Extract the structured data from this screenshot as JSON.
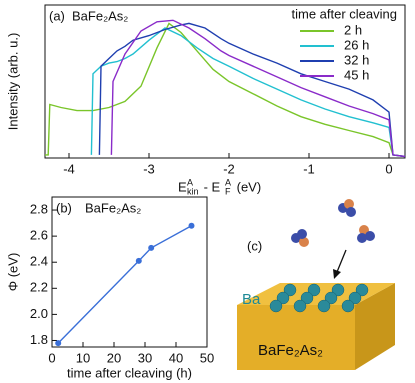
{
  "chart_data": [
    {
      "type": "line",
      "panel_label": "(a)",
      "annotation": "BaFe₂As₂",
      "xlabel": [
        "E",
        "A",
        "kin",
        " - E",
        "A",
        "F",
        " (eV)"
      ],
      "ylabel": "Intensity (arb. u.)",
      "xlim": [
        -4.3,
        0.2
      ],
      "xticks": [
        -4,
        -3,
        -2,
        -1,
        0
      ],
      "ylim": [
        0,
        1
      ],
      "legend_title": "time after cleaving",
      "legend": "upper right",
      "series": [
        {
          "name": "2 h",
          "color": "#7ac52a",
          "x": [
            -4.3,
            -4.26,
            -4.24,
            -4.1,
            -3.9,
            -3.7,
            -3.5,
            -3.3,
            -3.1,
            -2.9,
            -2.75,
            -2.6,
            -2.4,
            -2.2,
            -2,
            -1.7,
            -1.4,
            -1.1,
            -0.8,
            -0.5,
            -0.2,
            0,
            0.05,
            0.2
          ],
          "values": [
            0.02,
            0.02,
            0.35,
            0.33,
            0.31,
            0.31,
            0.33,
            0.37,
            0.47,
            0.72,
            0.88,
            0.82,
            0.7,
            0.58,
            0.5,
            0.42,
            0.34,
            0.27,
            0.22,
            0.18,
            0.14,
            0.1,
            0.02,
            0.01
          ]
        },
        {
          "name": "26 h",
          "color": "#22c0d0",
          "x": [
            -3.72,
            -3.7,
            -3.6,
            -3.5,
            -3.4,
            -3.3,
            -3.2,
            -3.0,
            -2.8,
            -2.6,
            -2.4,
            -2.2,
            -2,
            -1.7,
            -1.4,
            -1.1,
            -0.8,
            -0.5,
            -0.2,
            0,
            0.05,
            0.2
          ],
          "values": [
            0.02,
            0.55,
            0.6,
            0.62,
            0.63,
            0.65,
            0.68,
            0.77,
            0.85,
            0.8,
            0.72,
            0.65,
            0.6,
            0.52,
            0.45,
            0.38,
            0.32,
            0.27,
            0.23,
            0.2,
            0.02,
            0.01
          ]
        },
        {
          "name": "32 h",
          "color": "#1f3fb0",
          "x": [
            -3.62,
            -3.6,
            -3.5,
            -3.4,
            -3.3,
            -3.2,
            -3.0,
            -2.8,
            -2.6,
            -2.5,
            -2.3,
            -2.1,
            -2,
            -1.7,
            -1.4,
            -1.1,
            -0.8,
            -0.5,
            -0.2,
            0,
            0.05,
            0.2
          ],
          "values": [
            0.02,
            0.6,
            0.65,
            0.7,
            0.73,
            0.77,
            0.8,
            0.84,
            0.87,
            0.88,
            0.85,
            0.78,
            0.75,
            0.68,
            0.62,
            0.55,
            0.5,
            0.45,
            0.38,
            0.3,
            0.02,
            0.01
          ]
        },
        {
          "name": "45 h",
          "color": "#8a2bc9",
          "x": [
            -3.47,
            -3.45,
            -3.3,
            -3.1,
            -2.9,
            -2.7,
            -2.5,
            -2.3,
            -2.1,
            -2,
            -1.7,
            -1.4,
            -1.1,
            -0.8,
            -0.5,
            -0.2,
            0,
            0.05,
            0.2
          ],
          "values": [
            0.02,
            0.5,
            0.68,
            0.83,
            0.89,
            0.9,
            0.85,
            0.78,
            0.7,
            0.67,
            0.6,
            0.53,
            0.46,
            0.4,
            0.34,
            0.29,
            0.25,
            0.02,
            0.01
          ]
        }
      ]
    },
    {
      "type": "line",
      "panel_label": "(b)",
      "annotation": "BaFe₂As₂",
      "xlabel": "time after cleaving (h)",
      "ylabel": "Φ (eV)",
      "xlim": [
        0,
        50
      ],
      "xticks": [
        0,
        10,
        20,
        30,
        40,
        50
      ],
      "ylim": [
        1.75,
        2.9
      ],
      "yticks": [
        1.8,
        {
          "value": 2,
          "label": "2.0"
        },
        2.2,
        2.4,
        2.6,
        2.8
      ],
      "markers": true,
      "series": [
        {
          "color": "#3a6fd8",
          "x": [
            2,
            28,
            32,
            45
          ],
          "values": [
            1.78,
            2.41,
            2.51,
            2.68
          ]
        }
      ]
    }
  ],
  "diagram": {
    "panel_label": "(c)",
    "atom_label": "Ba",
    "substrate_label": "BaFe₂As₂"
  }
}
